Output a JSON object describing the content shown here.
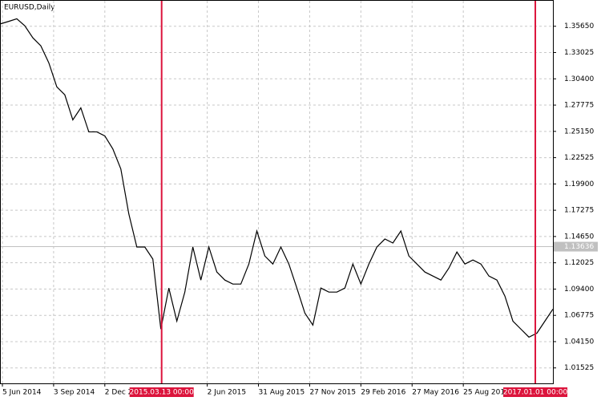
{
  "chart_data": {
    "type": "line",
    "title": "EURUSD,Daily",
    "x": [
      0,
      10,
      20,
      30,
      40,
      50,
      60,
      70,
      80,
      90,
      100,
      110,
      120,
      130,
      140,
      150,
      160,
      170,
      180,
      190,
      200,
      210,
      220,
      230,
      240,
      250,
      260,
      270,
      280,
      290,
      300,
      310,
      320,
      330,
      340,
      350,
      360,
      370,
      380,
      390,
      400,
      410,
      420,
      430,
      440,
      450,
      460,
      470,
      480,
      490,
      500,
      510,
      520,
      530,
      540,
      550,
      560,
      570,
      580,
      590,
      600,
      610,
      620,
      630,
      640,
      650,
      660,
      670,
      680,
      690
    ],
    "series": [
      {
        "name": "EURUSD",
        "color": "#000000",
        "values": [
          1.359,
          1.3614,
          1.364,
          1.357,
          1.345,
          1.337,
          1.32,
          1.296,
          1.288,
          1.263,
          1.275,
          1.251,
          1.251,
          1.247,
          1.234,
          1.214,
          1.169,
          1.136,
          1.136,
          1.124,
          1.054,
          1.095,
          1.062,
          1.091,
          1.136,
          1.103,
          1.136,
          1.111,
          1.103,
          1.099,
          1.099,
          1.119,
          1.152,
          1.127,
          1.119,
          1.136,
          1.119,
          1.095,
          1.07,
          1.058,
          1.095,
          1.091,
          1.091,
          1.095,
          1.119,
          1.099,
          1.119,
          1.136,
          1.144,
          1.14,
          1.152,
          1.127,
          1.119,
          1.111,
          1.107,
          1.103,
          1.115,
          1.131,
          1.119,
          1.123,
          1.119,
          1.107,
          1.103,
          1.087,
          1.062,
          1.054,
          1.046,
          1.05,
          1.062,
          1.074
        ]
      }
    ],
    "xlim": [
      0,
      690
    ],
    "xticks": [
      {
        "value": 2,
        "label": "5 Jun 2014"
      },
      {
        "value": 66,
        "label": "3 Sep 2014"
      },
      {
        "value": 130,
        "label": "2 Dec 2014"
      },
      {
        "value": 258,
        "label": "2 Jun 2015"
      },
      {
        "value": 322,
        "label": "31 Aug 2015"
      },
      {
        "value": 386,
        "label": "27 Nov 2015"
      },
      {
        "value": 450,
        "label": "29 Feb 2016"
      },
      {
        "value": 514,
        "label": "27 May 2016"
      },
      {
        "value": 578,
        "label": "25 Aug 2016"
      }
    ],
    "ylim": [
      0.99982,
      1.38193
    ],
    "yticks": [
      {
        "value": 1.3565,
        "label": "1.35650"
      },
      {
        "value": 1.33025,
        "label": "1.33025"
      },
      {
        "value": 1.304,
        "label": "1.30400"
      },
      {
        "value": 1.27775,
        "label": "1.27775"
      },
      {
        "value": 1.2515,
        "label": "1.25150"
      },
      {
        "value": 1.22525,
        "label": "1.22525"
      },
      {
        "value": 1.199,
        "label": "1.19900"
      },
      {
        "value": 1.17275,
        "label": "1.17275"
      },
      {
        "value": 1.1465,
        "label": "1.14650"
      },
      {
        "value": 1.12025,
        "label": "1.12025"
      },
      {
        "value": 1.094,
        "label": "1.09400"
      },
      {
        "value": 1.06775,
        "label": "1.06775"
      },
      {
        "value": 1.0415,
        "label": "1.04150"
      },
      {
        "value": 1.01525,
        "label": "1.01525"
      }
    ],
    "grid": true,
    "current_price": {
      "value": 1.13636,
      "label": "1.13636"
    },
    "vlines": [
      {
        "value": 201,
        "label": "2015.03.13 00:00"
      },
      {
        "value": 668,
        "label": "2017.01.01 00:00"
      }
    ],
    "vline_color": "#dc143c"
  }
}
